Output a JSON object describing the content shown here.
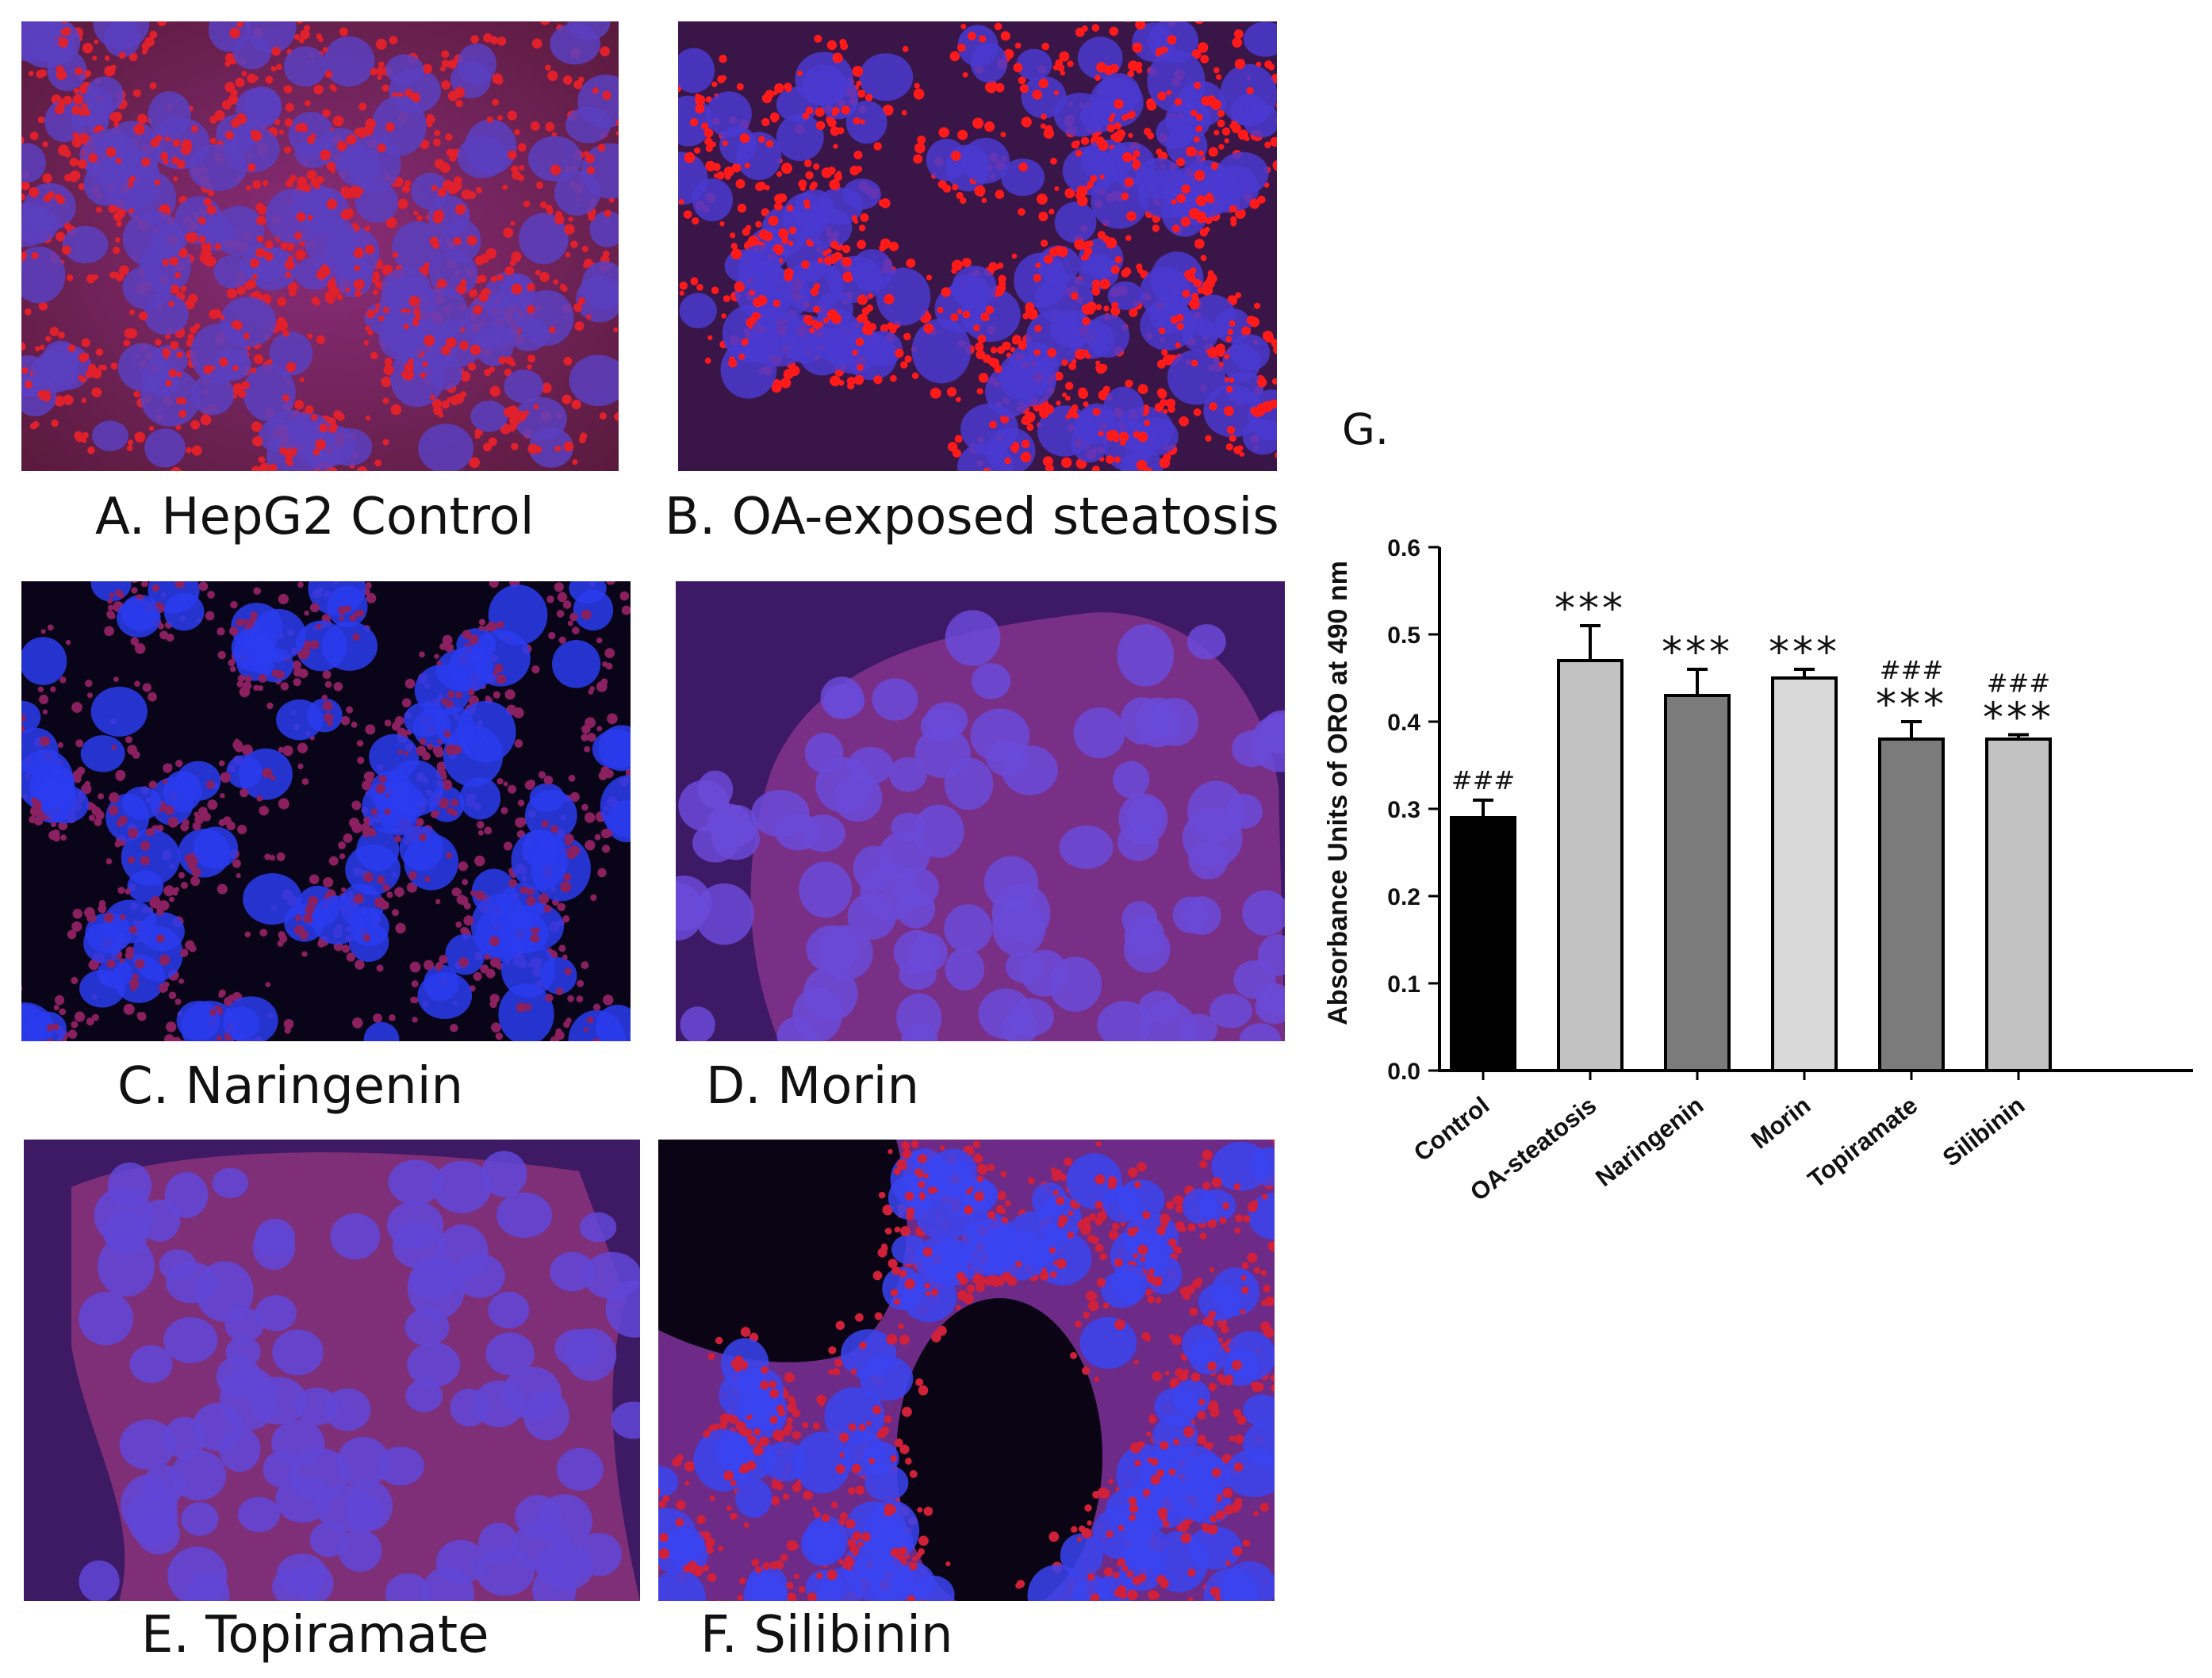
{
  "panels": [
    {
      "id": "a",
      "caption": "A. HepG2 Control"
    },
    {
      "id": "b",
      "caption": "B. OA-exposed steatosis"
    },
    {
      "id": "c",
      "caption": "C. Naringenin"
    },
    {
      "id": "d",
      "caption": "D. Morin"
    },
    {
      "id": "e",
      "caption": "E. Topiramate"
    },
    {
      "id": "f",
      "caption": "F. Silibinin"
    }
  ],
  "chart_data": {
    "panel_label": "G.",
    "type": "bar",
    "categories": [
      "Control",
      "OA-steatosis",
      "Naringenin",
      "Morin",
      "Topiramate",
      "Silibinin"
    ],
    "values": [
      0.29,
      0.47,
      0.43,
      0.45,
      0.38,
      0.38
    ],
    "errors": [
      0.02,
      0.04,
      0.03,
      0.01,
      0.02,
      0.005
    ],
    "bar_colors": [
      "#000000",
      "#c2c2c2",
      "#7b7b7b",
      "#d9d9d9",
      "#7b7b7b",
      "#c2c2c2"
    ],
    "annotations_star": [
      "",
      "***",
      "***",
      "***",
      "***",
      "***"
    ],
    "annotations_hash": [
      "###",
      "",
      "",
      "",
      "###",
      "###"
    ],
    "ylabel": "Absorbance Units of ORO at 490 nm",
    "xlabel": "",
    "ylim": [
      0.0,
      0.6
    ],
    "yticks": [
      "0.0",
      "0.1",
      "0.2",
      "0.3",
      "0.4",
      "0.5",
      "0.6"
    ],
    "grid": false
  }
}
